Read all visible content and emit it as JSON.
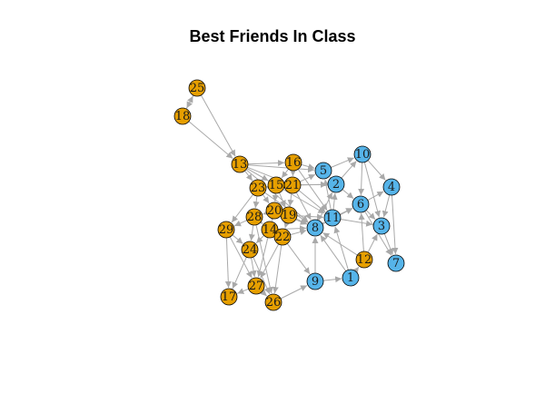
{
  "title": "Best Friends In Class",
  "colors": {
    "group_orange": "#E69F00",
    "group_blue": "#56B4E9",
    "edge": "#A9A9A9",
    "node_border": "#000000",
    "label": "#1a1a1a"
  },
  "nodes": [
    {
      "id": "1",
      "group": "blue"
    },
    {
      "id": "2",
      "group": "blue"
    },
    {
      "id": "3",
      "group": "blue"
    },
    {
      "id": "4",
      "group": "blue"
    },
    {
      "id": "5",
      "group": "blue"
    },
    {
      "id": "6",
      "group": "blue"
    },
    {
      "id": "7",
      "group": "blue"
    },
    {
      "id": "8",
      "group": "blue"
    },
    {
      "id": "9",
      "group": "blue"
    },
    {
      "id": "10",
      "group": "blue"
    },
    {
      "id": "11",
      "group": "blue"
    },
    {
      "id": "12",
      "group": "orange"
    },
    {
      "id": "13",
      "group": "orange"
    },
    {
      "id": "14",
      "group": "orange"
    },
    {
      "id": "15",
      "group": "orange"
    },
    {
      "id": "16",
      "group": "orange"
    },
    {
      "id": "17",
      "group": "orange"
    },
    {
      "id": "18",
      "group": "orange"
    },
    {
      "id": "19",
      "group": "orange"
    },
    {
      "id": "20",
      "group": "orange"
    },
    {
      "id": "21",
      "group": "orange"
    },
    {
      "id": "22",
      "group": "orange"
    },
    {
      "id": "23",
      "group": "orange"
    },
    {
      "id": "24",
      "group": "orange"
    },
    {
      "id": "25",
      "group": "orange"
    },
    {
      "id": "26",
      "group": "orange"
    },
    {
      "id": "27",
      "group": "orange"
    },
    {
      "id": "28",
      "group": "orange"
    },
    {
      "id": "29",
      "group": "orange"
    }
  ],
  "edges": [
    [
      "25",
      "18"
    ],
    [
      "18",
      "25"
    ],
    [
      "25",
      "13"
    ],
    [
      "18",
      "13"
    ],
    [
      "13",
      "23"
    ],
    [
      "13",
      "15"
    ],
    [
      "13",
      "21"
    ],
    [
      "13",
      "16"
    ],
    [
      "13",
      "5"
    ],
    [
      "13",
      "8"
    ],
    [
      "13",
      "11"
    ],
    [
      "16",
      "21"
    ],
    [
      "16",
      "15"
    ],
    [
      "16",
      "5"
    ],
    [
      "16",
      "11"
    ],
    [
      "15",
      "21"
    ],
    [
      "15",
      "23"
    ],
    [
      "15",
      "20"
    ],
    [
      "15",
      "19"
    ],
    [
      "15",
      "2"
    ],
    [
      "21",
      "5"
    ],
    [
      "21",
      "2"
    ],
    [
      "21",
      "11"
    ],
    [
      "21",
      "8"
    ],
    [
      "21",
      "19"
    ],
    [
      "23",
      "28"
    ],
    [
      "23",
      "20"
    ],
    [
      "23",
      "29"
    ],
    [
      "23",
      "8"
    ],
    [
      "20",
      "19"
    ],
    [
      "20",
      "28"
    ],
    [
      "20",
      "14"
    ],
    [
      "20",
      "8"
    ],
    [
      "19",
      "22"
    ],
    [
      "19",
      "8"
    ],
    [
      "19",
      "11"
    ],
    [
      "28",
      "29"
    ],
    [
      "28",
      "14"
    ],
    [
      "28",
      "24"
    ],
    [
      "28",
      "26"
    ],
    [
      "14",
      "22"
    ],
    [
      "14",
      "24"
    ],
    [
      "14",
      "27"
    ],
    [
      "14",
      "8"
    ],
    [
      "22",
      "8"
    ],
    [
      "22",
      "27"
    ],
    [
      "22",
      "26"
    ],
    [
      "22",
      "9"
    ],
    [
      "29",
      "24"
    ],
    [
      "29",
      "17"
    ],
    [
      "29",
      "27"
    ],
    [
      "24",
      "27"
    ],
    [
      "24",
      "17"
    ],
    [
      "24",
      "26"
    ],
    [
      "27",
      "17"
    ],
    [
      "27",
      "26"
    ],
    [
      "26",
      "9"
    ],
    [
      "9",
      "8"
    ],
    [
      "9",
      "1"
    ],
    [
      "1",
      "12"
    ],
    [
      "1",
      "8"
    ],
    [
      "1",
      "11"
    ],
    [
      "12",
      "8"
    ],
    [
      "12",
      "3"
    ],
    [
      "12",
      "6"
    ],
    [
      "8",
      "11"
    ],
    [
      "8",
      "2"
    ],
    [
      "8",
      "6"
    ],
    [
      "11",
      "6"
    ],
    [
      "11",
      "2"
    ],
    [
      "11",
      "3"
    ],
    [
      "11",
      "5"
    ],
    [
      "2",
      "5"
    ],
    [
      "2",
      "10"
    ],
    [
      "2",
      "6"
    ],
    [
      "5",
      "10"
    ],
    [
      "10",
      "6"
    ],
    [
      "10",
      "4"
    ],
    [
      "10",
      "3"
    ],
    [
      "6",
      "4"
    ],
    [
      "6",
      "3"
    ],
    [
      "4",
      "3"
    ],
    [
      "4",
      "7"
    ],
    [
      "3",
      "7"
    ],
    [
      "6",
      "7"
    ]
  ]
}
